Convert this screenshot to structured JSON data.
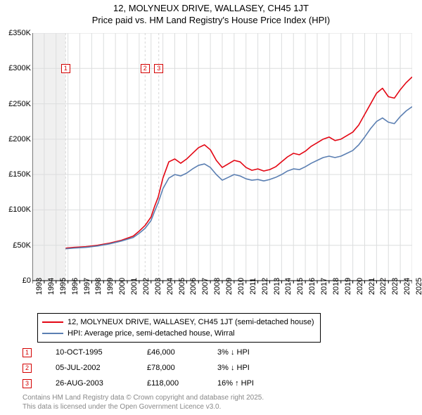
{
  "title": "12, MOLYNEUX DRIVE, WALLASEY, CH45 1JT",
  "subtitle": "Price paid vs. HM Land Registry's House Price Index (HPI)",
  "chart": {
    "type": "line",
    "background_color": "#ffffff",
    "grid_color": "#dcddde",
    "grid_stroke_width": 1,
    "plot_bg_grey": "#f0f0f0",
    "axis_color": "#000000",
    "font_family": "Arial, Helvetica, sans-serif",
    "title_fontsize": 13,
    "tick_fontsize": 11,
    "x": {
      "min": 1993,
      "max": 2025,
      "ticks": [
        1993,
        1994,
        1995,
        1996,
        1997,
        1998,
        1999,
        2000,
        2001,
        2002,
        2003,
        2004,
        2005,
        2006,
        2007,
        2008,
        2009,
        2010,
        2011,
        2012,
        2013,
        2014,
        2015,
        2016,
        2017,
        2018,
        2019,
        2020,
        2021,
        2022,
        2023,
        2024,
        2025
      ]
    },
    "y": {
      "min": 0,
      "max": 350000,
      "ticks": [
        0,
        50000,
        100000,
        150000,
        200000,
        250000,
        300000,
        350000
      ],
      "tick_labels": [
        "£0",
        "£50K",
        "£100K",
        "£150K",
        "£200K",
        "£250K",
        "£300K",
        "£350K"
      ]
    },
    "pre_shade": {
      "from_x": 1993,
      "to_x": 1995.8
    },
    "series": [
      {
        "id": "subject",
        "label": "12, MOLYNEUX DRIVE, WALLASEY, CH45 1JT (semi-detached house)",
        "color": "#e30613",
        "stroke_width": 1.6,
        "data": [
          [
            1995.8,
            46000
          ],
          [
            1996.5,
            47000
          ],
          [
            1997.5,
            48000
          ],
          [
            1998.5,
            50000
          ],
          [
            1999.5,
            53000
          ],
          [
            2000.5,
            57000
          ],
          [
            2001.5,
            63000
          ],
          [
            2002.0,
            70000
          ],
          [
            2002.5,
            78000
          ],
          [
            2003.0,
            90000
          ],
          [
            2003.3,
            105000
          ],
          [
            2003.6,
            118000
          ],
          [
            2004.0,
            145000
          ],
          [
            2004.5,
            168000
          ],
          [
            2005.0,
            172000
          ],
          [
            2005.5,
            166000
          ],
          [
            2006.0,
            172000
          ],
          [
            2006.5,
            180000
          ],
          [
            2007.0,
            188000
          ],
          [
            2007.5,
            192000
          ],
          [
            2008.0,
            185000
          ],
          [
            2008.5,
            170000
          ],
          [
            2009.0,
            160000
          ],
          [
            2009.5,
            165000
          ],
          [
            2010.0,
            170000
          ],
          [
            2010.5,
            168000
          ],
          [
            2011.0,
            160000
          ],
          [
            2011.5,
            156000
          ],
          [
            2012.0,
            158000
          ],
          [
            2012.5,
            155000
          ],
          [
            2013.0,
            157000
          ],
          [
            2013.5,
            161000
          ],
          [
            2014.0,
            168000
          ],
          [
            2014.5,
            175000
          ],
          [
            2015.0,
            180000
          ],
          [
            2015.5,
            178000
          ],
          [
            2016.0,
            183000
          ],
          [
            2016.5,
            190000
          ],
          [
            2017.0,
            195000
          ],
          [
            2017.5,
            200000
          ],
          [
            2018.0,
            203000
          ],
          [
            2018.5,
            198000
          ],
          [
            2019.0,
            200000
          ],
          [
            2019.5,
            205000
          ],
          [
            2020.0,
            210000
          ],
          [
            2020.5,
            220000
          ],
          [
            2021.0,
            235000
          ],
          [
            2021.5,
            250000
          ],
          [
            2022.0,
            265000
          ],
          [
            2022.5,
            272000
          ],
          [
            2023.0,
            260000
          ],
          [
            2023.5,
            258000
          ],
          [
            2024.0,
            270000
          ],
          [
            2024.5,
            280000
          ],
          [
            2025.0,
            288000
          ]
        ]
      },
      {
        "id": "hpi",
        "label": "HPI: Average price, semi-detached house, Wirral",
        "color": "#5b7fb2",
        "stroke_width": 1.6,
        "data": [
          [
            1995.8,
            45000
          ],
          [
            1996.5,
            46000
          ],
          [
            1997.5,
            47000
          ],
          [
            1998.5,
            49000
          ],
          [
            1999.5,
            52000
          ],
          [
            2000.5,
            56000
          ],
          [
            2001.5,
            61000
          ],
          [
            2002.0,
            67000
          ],
          [
            2002.5,
            74000
          ],
          [
            2003.0,
            85000
          ],
          [
            2003.3,
            98000
          ],
          [
            2003.6,
            110000
          ],
          [
            2004.0,
            130000
          ],
          [
            2004.5,
            145000
          ],
          [
            2005.0,
            150000
          ],
          [
            2005.5,
            148000
          ],
          [
            2006.0,
            152000
          ],
          [
            2006.5,
            158000
          ],
          [
            2007.0,
            163000
          ],
          [
            2007.5,
            165000
          ],
          [
            2008.0,
            160000
          ],
          [
            2008.5,
            150000
          ],
          [
            2009.0,
            142000
          ],
          [
            2009.5,
            146000
          ],
          [
            2010.0,
            150000
          ],
          [
            2010.5,
            148000
          ],
          [
            2011.0,
            144000
          ],
          [
            2011.5,
            142000
          ],
          [
            2012.0,
            143000
          ],
          [
            2012.5,
            141000
          ],
          [
            2013.0,
            143000
          ],
          [
            2013.5,
            146000
          ],
          [
            2014.0,
            150000
          ],
          [
            2014.5,
            155000
          ],
          [
            2015.0,
            158000
          ],
          [
            2015.5,
            157000
          ],
          [
            2016.0,
            161000
          ],
          [
            2016.5,
            166000
          ],
          [
            2017.0,
            170000
          ],
          [
            2017.5,
            174000
          ],
          [
            2018.0,
            176000
          ],
          [
            2018.5,
            174000
          ],
          [
            2019.0,
            176000
          ],
          [
            2019.5,
            180000
          ],
          [
            2020.0,
            184000
          ],
          [
            2020.5,
            192000
          ],
          [
            2021.0,
            203000
          ],
          [
            2021.5,
            215000
          ],
          [
            2022.0,
            225000
          ],
          [
            2022.5,
            230000
          ],
          [
            2023.0,
            224000
          ],
          [
            2023.5,
            222000
          ],
          [
            2024.0,
            232000
          ],
          [
            2024.5,
            240000
          ],
          [
            2025.0,
            246000
          ]
        ]
      }
    ],
    "markers": [
      {
        "n": "1",
        "x": 1995.8,
        "y": 300000
      },
      {
        "n": "2",
        "x": 2002.5,
        "y": 300000
      },
      {
        "n": "3",
        "x": 2003.65,
        "y": 300000
      }
    ],
    "marker_lines": [
      {
        "x": 1995.8
      },
      {
        "x": 2002.5
      },
      {
        "x": 2003.65
      }
    ],
    "marker_line_color": "#d6d6d6",
    "marker_box_border": "#d40000",
    "marker_box_text_color": "#d40000",
    "marker_box_size": 13
  },
  "legend": {
    "items": [
      {
        "color": "#e30613",
        "label": "12, MOLYNEUX DRIVE, WALLASEY, CH45 1JT (semi-detached house)"
      },
      {
        "color": "#5b7fb2",
        "label": "HPI: Average price, semi-detached house, Wirral"
      }
    ]
  },
  "footer_rows": [
    {
      "n": "1",
      "date": "10-OCT-1995",
      "price": "£46,000",
      "pct": "3%  ↓  HPI"
    },
    {
      "n": "2",
      "date": "05-JUL-2002",
      "price": "£78,000",
      "pct": "3%  ↓  HPI"
    },
    {
      "n": "3",
      "date": "26-AUG-2003",
      "price": "£118,000",
      "pct": "16%  ↑  HPI"
    }
  ],
  "attribution_line1": "Contains HM Land Registry data © Crown copyright and database right 2025.",
  "attribution_line2": "This data is licensed under the Open Government Licence v3.0."
}
